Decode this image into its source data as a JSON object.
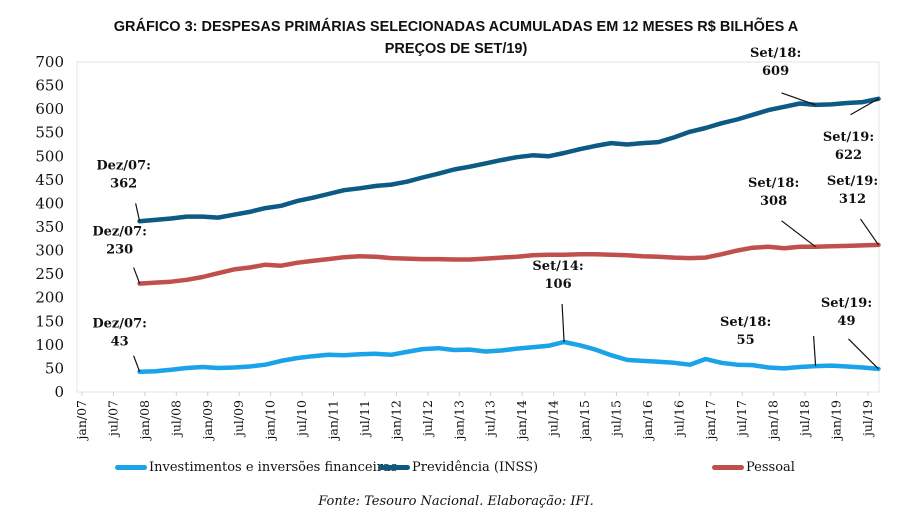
{
  "chart_data": {
    "type": "line",
    "title": "GRÁFICO 3: DESPESAS PRIMÁRIAS SELECIONADAS ACUMULADAS EM 12 MESES R$ BILHÕES A PREÇOS DE SET/19)",
    "title_lines": [
      "GRÁFICO 3: DESPESAS PRIMÁRIAS SELECIONADAS ACUMULADAS EM 12 MESES R$ BILHÕES A",
      "PREÇOS DE SET/19)"
    ],
    "xlabel": "",
    "ylabel": "",
    "ylim": [
      0,
      700
    ],
    "yticks": [
      0,
      50,
      100,
      150,
      200,
      250,
      300,
      350,
      400,
      450,
      500,
      550,
      600,
      650,
      700
    ],
    "xticks": [
      "jan/07",
      "jul/07",
      "jan/08",
      "jul/08",
      "jan/09",
      "jul/09",
      "jan/10",
      "jul/10",
      "jan/11",
      "jul/11",
      "jan/12",
      "jul/12",
      "jan/13",
      "jul/13",
      "jan/14",
      "jul/14",
      "jan/15",
      "jul/15",
      "jan/16",
      "jul/16",
      "jan/17",
      "jul/17",
      "jan/18",
      "jul/18",
      "jan/19",
      "jul/19"
    ],
    "x_range": [
      "jan/07",
      "set/19"
    ],
    "grid": false,
    "legend_position": "bottom",
    "x": [
      "dez/07",
      "mar/08",
      "jun/08",
      "set/08",
      "dez/08",
      "mar/09",
      "jun/09",
      "set/09",
      "dez/09",
      "mar/10",
      "jun/10",
      "set/10",
      "dez/10",
      "mar/11",
      "jun/11",
      "set/11",
      "dez/11",
      "mar/12",
      "jun/12",
      "set/12",
      "dez/12",
      "mar/13",
      "jun/13",
      "set/13",
      "dez/13",
      "mar/14",
      "jun/14",
      "set/14",
      "dez/14",
      "mar/15",
      "jun/15",
      "set/15",
      "dez/15",
      "mar/16",
      "jun/16",
      "set/16",
      "dez/16",
      "mar/17",
      "jun/17",
      "set/17",
      "dez/17",
      "mar/18",
      "jun/18",
      "set/18",
      "dez/18",
      "mar/19",
      "jun/19",
      "set/19"
    ],
    "series": [
      {
        "name": "Investimentos e inversões financeiras",
        "color": "#1aa3e8",
        "values": [
          43,
          44,
          47,
          51,
          53,
          51,
          52,
          54,
          58,
          66,
          72,
          76,
          79,
          78,
          80,
          81,
          79,
          85,
          91,
          93,
          89,
          90,
          86,
          88,
          92,
          95,
          98,
          106,
          99,
          90,
          78,
          68,
          66,
          64,
          62,
          58,
          70,
          62,
          58,
          57,
          52,
          50,
          53,
          55,
          56,
          54,
          52,
          49
        ]
      },
      {
        "name": "Previdência (INSS)",
        "color": "#0d5a85",
        "values": [
          362,
          365,
          368,
          372,
          372,
          370,
          376,
          382,
          390,
          395,
          405,
          412,
          420,
          428,
          432,
          437,
          440,
          446,
          455,
          463,
          472,
          478,
          485,
          492,
          498,
          502,
          500,
          507,
          515,
          522,
          528,
          525,
          528,
          530,
          540,
          552,
          560,
          570,
          578,
          588,
          598,
          605,
          612,
          609,
          610,
          613,
          615,
          622
        ]
      },
      {
        "name": "Pessoal",
        "color": "#c0504d",
        "values": [
          230,
          232,
          234,
          238,
          244,
          252,
          260,
          264,
          270,
          268,
          274,
          278,
          282,
          286,
          288,
          287,
          284,
          283,
          282,
          282,
          281,
          281,
          283,
          285,
          287,
          290,
          291,
          291,
          292,
          292,
          291,
          290,
          288,
          287,
          285,
          284,
          285,
          292,
          300,
          306,
          308,
          305,
          308,
          308,
          309,
          310,
          311,
          312
        ]
      }
    ],
    "annotations": [
      {
        "series": "Previdência (INSS)",
        "at": "dez/07",
        "label": "Dez/07:",
        "value": "362"
      },
      {
        "series": "Previdência (INSS)",
        "at": "set/18",
        "label": "Set/18:",
        "value": "609"
      },
      {
        "series": "Previdência (INSS)",
        "at": "set/19",
        "label": "Set/19:",
        "value": "622"
      },
      {
        "series": "Pessoal",
        "at": "dez/07",
        "label": "Dez/07:",
        "value": "230"
      },
      {
        "series": "Pessoal",
        "at": "set/18",
        "label": "Set/18:",
        "value": "308"
      },
      {
        "series": "Pessoal",
        "at": "set/19",
        "label": "Set/19:",
        "value": "312"
      },
      {
        "series": "Investimentos e inversões financeiras",
        "at": "dez/07",
        "label": "Dez/07:",
        "value": "43"
      },
      {
        "series": "Investimentos e inversões financeiras",
        "at": "set/14",
        "label": "Set/14:",
        "value": "106"
      },
      {
        "series": "Investimentos e inversões financeiras",
        "at": "set/18",
        "label": "Set/18:",
        "value": "55"
      },
      {
        "series": "Investimentos e inversões financeiras",
        "at": "set/19",
        "label": "Set/19:",
        "value": "49"
      }
    ],
    "source": "Fonte: Tesouro Nacional. Elaboração: IFI."
  }
}
